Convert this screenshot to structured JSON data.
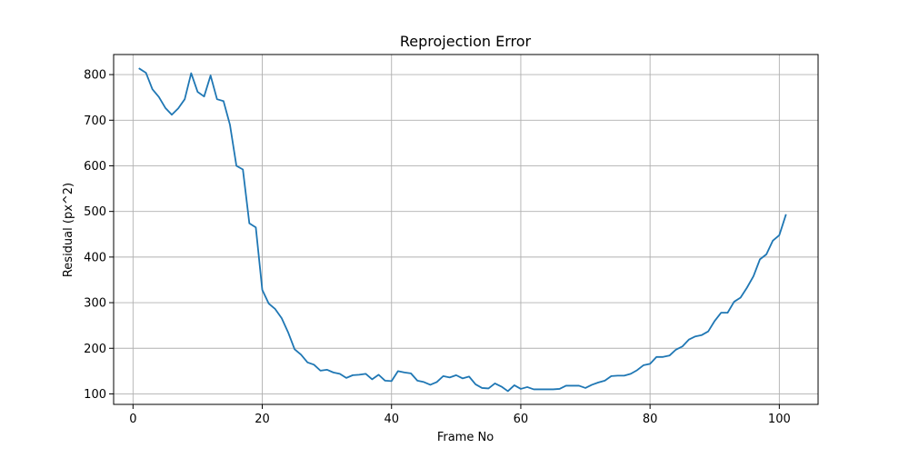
{
  "chart_data": {
    "type": "line",
    "title": "Reprojection Error",
    "xlabel": "Frame No",
    "ylabel": "Residual (px^2)",
    "xlim": [
      -3,
      106
    ],
    "ylim": [
      77,
      844
    ],
    "xticks": [
      0,
      20,
      40,
      60,
      80,
      100
    ],
    "yticks": [
      100,
      200,
      300,
      400,
      500,
      600,
      700,
      800
    ],
    "grid": true,
    "colors": {
      "line": "#1f77b4",
      "grid": "#b0b0b0",
      "axis": "#000000",
      "background": "#ffffff"
    },
    "series": [
      {
        "x": [
          1,
          2,
          3,
          4,
          5,
          6,
          7,
          8,
          9,
          10,
          11,
          12,
          13,
          14,
          15,
          16,
          17,
          18,
          19,
          20,
          21,
          22,
          23,
          24,
          25,
          26,
          27,
          28,
          29,
          30,
          31,
          32,
          33,
          34,
          35,
          36,
          37,
          38,
          39,
          40,
          41,
          42,
          43,
          44,
          45,
          46,
          47,
          48,
          49,
          50,
          51,
          52,
          53,
          54,
          55,
          56,
          57,
          58,
          59,
          60,
          61,
          62,
          63,
          64,
          65,
          66,
          67,
          68,
          69,
          70,
          71,
          72,
          73,
          74,
          75,
          76,
          77,
          78,
          79,
          80,
          81,
          82,
          83,
          84,
          85,
          86,
          87,
          88,
          89,
          90,
          91,
          92,
          93,
          94,
          95,
          96,
          97,
          98,
          99,
          100,
          101
        ],
        "values": [
          813,
          804,
          768,
          751,
          727,
          712,
          726,
          746,
          803,
          762,
          752,
          798,
          746,
          742,
          690,
          600,
          592,
          474,
          465,
          328,
          298,
          286,
          266,
          235,
          198,
          186,
          169,
          164,
          151,
          153,
          147,
          144,
          135,
          141,
          142,
          144,
          132,
          142,
          129,
          128,
          150,
          147,
          145,
          129,
          126,
          120,
          126,
          139,
          136,
          141,
          134,
          138,
          121,
          113,
          112,
          123,
          116,
          106,
          119,
          111,
          115,
          110,
          110,
          110,
          110,
          111,
          118,
          118,
          118,
          113,
          120,
          125,
          129,
          139,
          140,
          140,
          144,
          152,
          163,
          166,
          181,
          181,
          184,
          197,
          204,
          219,
          226,
          229,
          237,
          260,
          278,
          278,
          302,
          311,
          333,
          358,
          395,
          406,
          436,
          448,
          492
        ]
      }
    ]
  }
}
